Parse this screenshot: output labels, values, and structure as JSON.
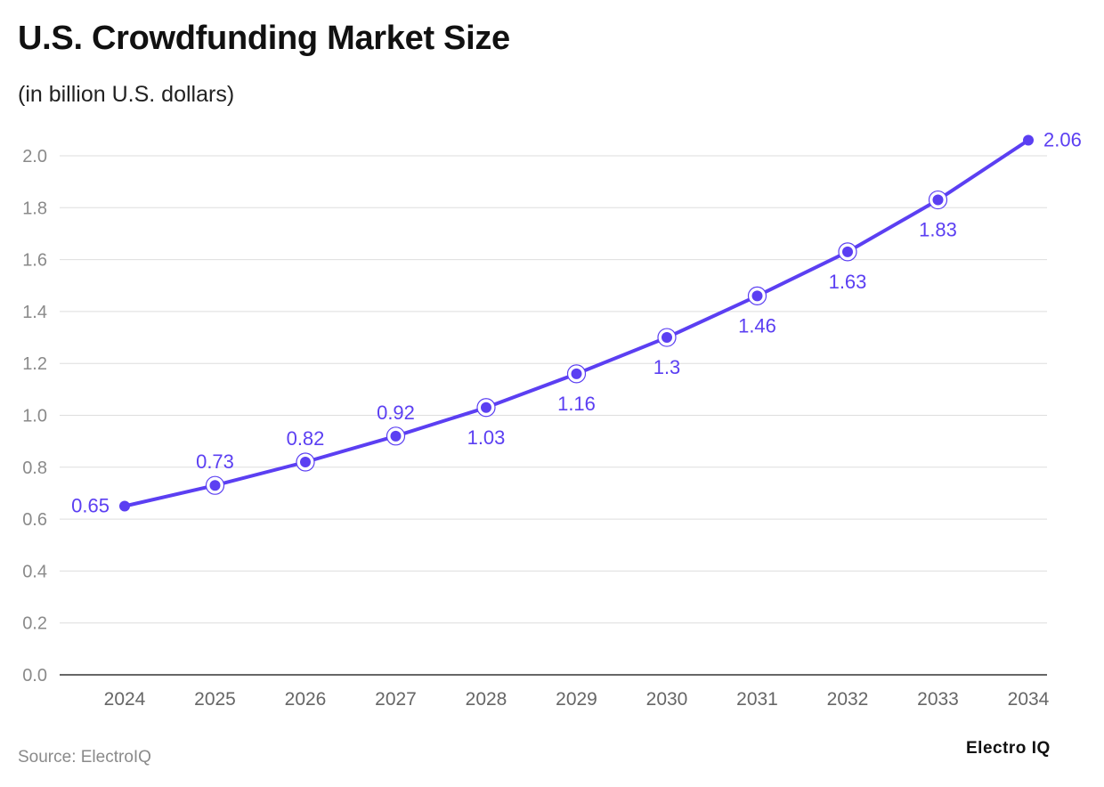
{
  "header": {
    "title": "U.S. Crowdfunding Market Size",
    "subtitle": "(in billion U.S. dollars)"
  },
  "footer": {
    "source": "Source: ElectroIQ",
    "brand": "Electro IQ"
  },
  "colors": {
    "series": "#5b3ff2",
    "grid": "#dedede",
    "axis": "#333333",
    "tick_text": "#8a8a8a",
    "category_text": "#666666"
  },
  "chart_data": {
    "type": "line",
    "title": "U.S. Crowdfunding Market Size",
    "subtitle": "(in billion U.S. dollars)",
    "xlabel": "",
    "ylabel": "",
    "categories": [
      "2024",
      "2025",
      "2026",
      "2027",
      "2028",
      "2029",
      "2030",
      "2031",
      "2032",
      "2033",
      "2034"
    ],
    "series": [
      {
        "name": "U.S. Crowdfunding Market Size",
        "values": [
          0.65,
          0.73,
          0.82,
          0.92,
          1.03,
          1.16,
          1.3,
          1.46,
          1.63,
          1.83,
          2.06
        ],
        "labels": [
          "0.65",
          "0.73",
          "0.82",
          "0.92",
          "1.03",
          "1.16",
          "1.3",
          "1.46",
          "1.63",
          "1.83",
          "2.06"
        ]
      }
    ],
    "ylim": [
      0,
      2.0
    ],
    "yticks": [
      "0.0",
      "0.2",
      "0.4",
      "0.6",
      "0.8",
      "1.0",
      "1.2",
      "1.4",
      "1.6",
      "1.8",
      "2.0"
    ],
    "grid": true,
    "legend": "none"
  }
}
